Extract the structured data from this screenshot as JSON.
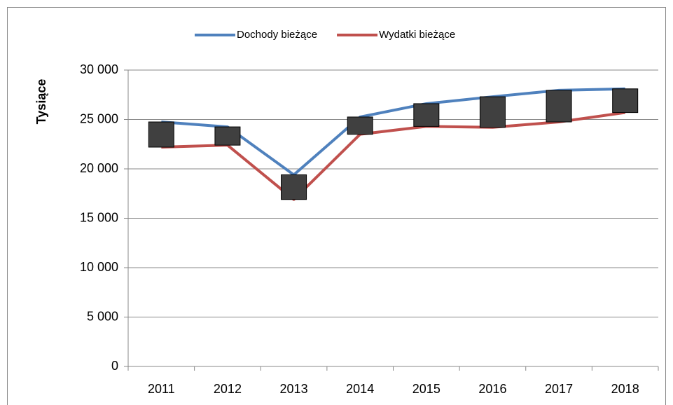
{
  "chart_data": {
    "type": "line",
    "y_label": "Tysiące",
    "categories": [
      "2011",
      "2012",
      "2013",
      "2014",
      "2015",
      "2016",
      "2017",
      "2018"
    ],
    "series": [
      {
        "name": "Dochody bieżące",
        "color": "#4f81bd",
        "values": [
          24750,
          24250,
          19400,
          25250,
          26600,
          27300,
          27950,
          28100
        ]
      },
      {
        "name": "Wydatki bieżące",
        "color": "#c0504d",
        "values": [
          22200,
          22400,
          16900,
          23500,
          24300,
          24200,
          24750,
          25700
        ]
      }
    ],
    "up_down_bars": true,
    "bar_color": "#404040",
    "ylim": [
      0,
      30000
    ],
    "yticks": [
      0,
      {
        "value": 5000,
        "label": "5 000"
      },
      {
        "value": 10000,
        "label": "10 000"
      },
      {
        "value": 15000,
        "label": "15 000"
      },
      {
        "value": 20000,
        "label": "20 000"
      },
      {
        "value": 25000,
        "label": "25 000"
      },
      {
        "value": 30000,
        "label": "30 000"
      }
    ],
    "grid": true,
    "legend": "top"
  }
}
